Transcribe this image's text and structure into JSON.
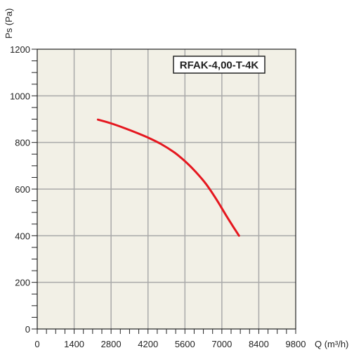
{
  "chart_data": {
    "type": "line",
    "title": "",
    "model_label": "RFAK-4,00-T-4K",
    "xlabel": "Q (m³/h)",
    "ylabel": "Ps (Pa)",
    "xlim": [
      0,
      9800
    ],
    "ylim": [
      0,
      1200
    ],
    "x_ticks": [
      0,
      1400,
      2800,
      4200,
      5600,
      7000,
      8400,
      9800
    ],
    "x_tick_labels": [
      "0",
      "1400",
      "2800",
      "4200",
      "5600",
      "7000",
      "8400",
      "9800"
    ],
    "y_ticks": [
      0,
      200,
      400,
      600,
      800,
      1000,
      1200
    ],
    "y_tick_labels": [
      "0",
      "200",
      "400",
      "600",
      "800",
      "1000",
      "1200"
    ],
    "x_minor_step": 350,
    "y_minor_step": 50,
    "grid": true,
    "legend": "none",
    "colors": {
      "plot_background": "#f2f0e6",
      "grid": "#a9a9a9",
      "axis": "#222222",
      "curve": "#e5171f"
    },
    "series": [
      {
        "x": [
          2300,
          2800,
          3300,
          3800,
          4200,
          4700,
          5200,
          5600,
          6000,
          6400,
          6800,
          7200,
          7650
        ],
        "y": [
          898,
          882,
          862,
          840,
          821,
          793,
          757,
          720,
          675,
          622,
          555,
          480,
          400
        ]
      }
    ]
  }
}
